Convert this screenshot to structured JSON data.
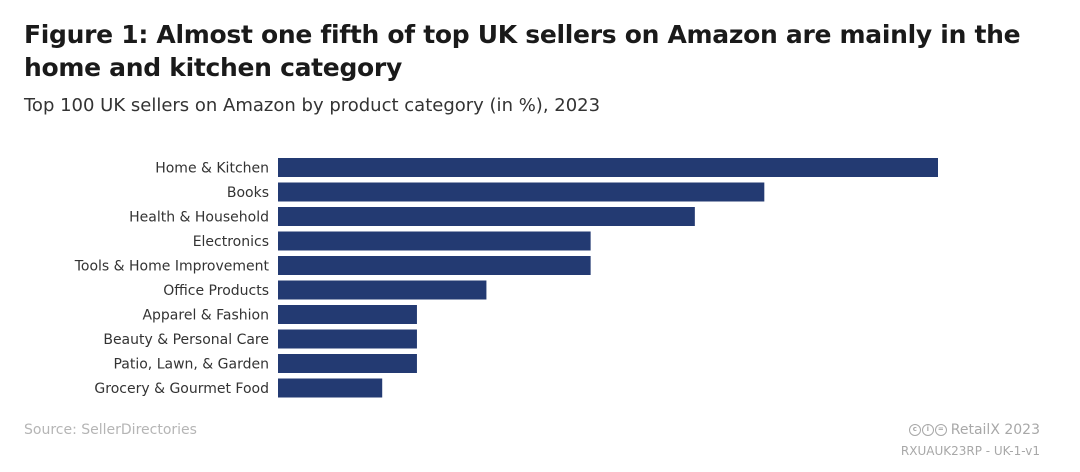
{
  "header": {
    "title": "Figure 1: Almost one fifth of top UK sellers on Amazon are mainly in the home and kitchen category",
    "subtitle": "Top 100 UK sellers on Amazon by product category (in %), 2023"
  },
  "footer": {
    "source": "Source: SellerDirectories",
    "brand": "RetailX 2023",
    "code": "RXUAUK23RP - UK-1-v1",
    "license_icons": [
      "cc-icon",
      "by-icon",
      "nd-icon"
    ]
  },
  "colors": {
    "bar": "#233a72"
  },
  "chart_data": {
    "type": "bar",
    "orientation": "horizontal",
    "title": "Top 100 UK sellers on Amazon by product category (in %), 2023",
    "xlabel": "",
    "ylabel": "",
    "xlim": [
      0,
      19
    ],
    "grid": false,
    "legend": "none",
    "categories": [
      "Home & Kitchen",
      "Books",
      "Health & Household",
      "Electronics",
      "Tools & Home Improvement",
      "Office Products",
      "Apparel & Fashion",
      "Beauty & Personal Care",
      "Patio, Lawn, & Garden",
      "Grocery & Gourmet Food"
    ],
    "values": [
      19,
      14,
      12,
      9,
      9,
      6,
      4,
      4,
      4,
      3
    ]
  }
}
